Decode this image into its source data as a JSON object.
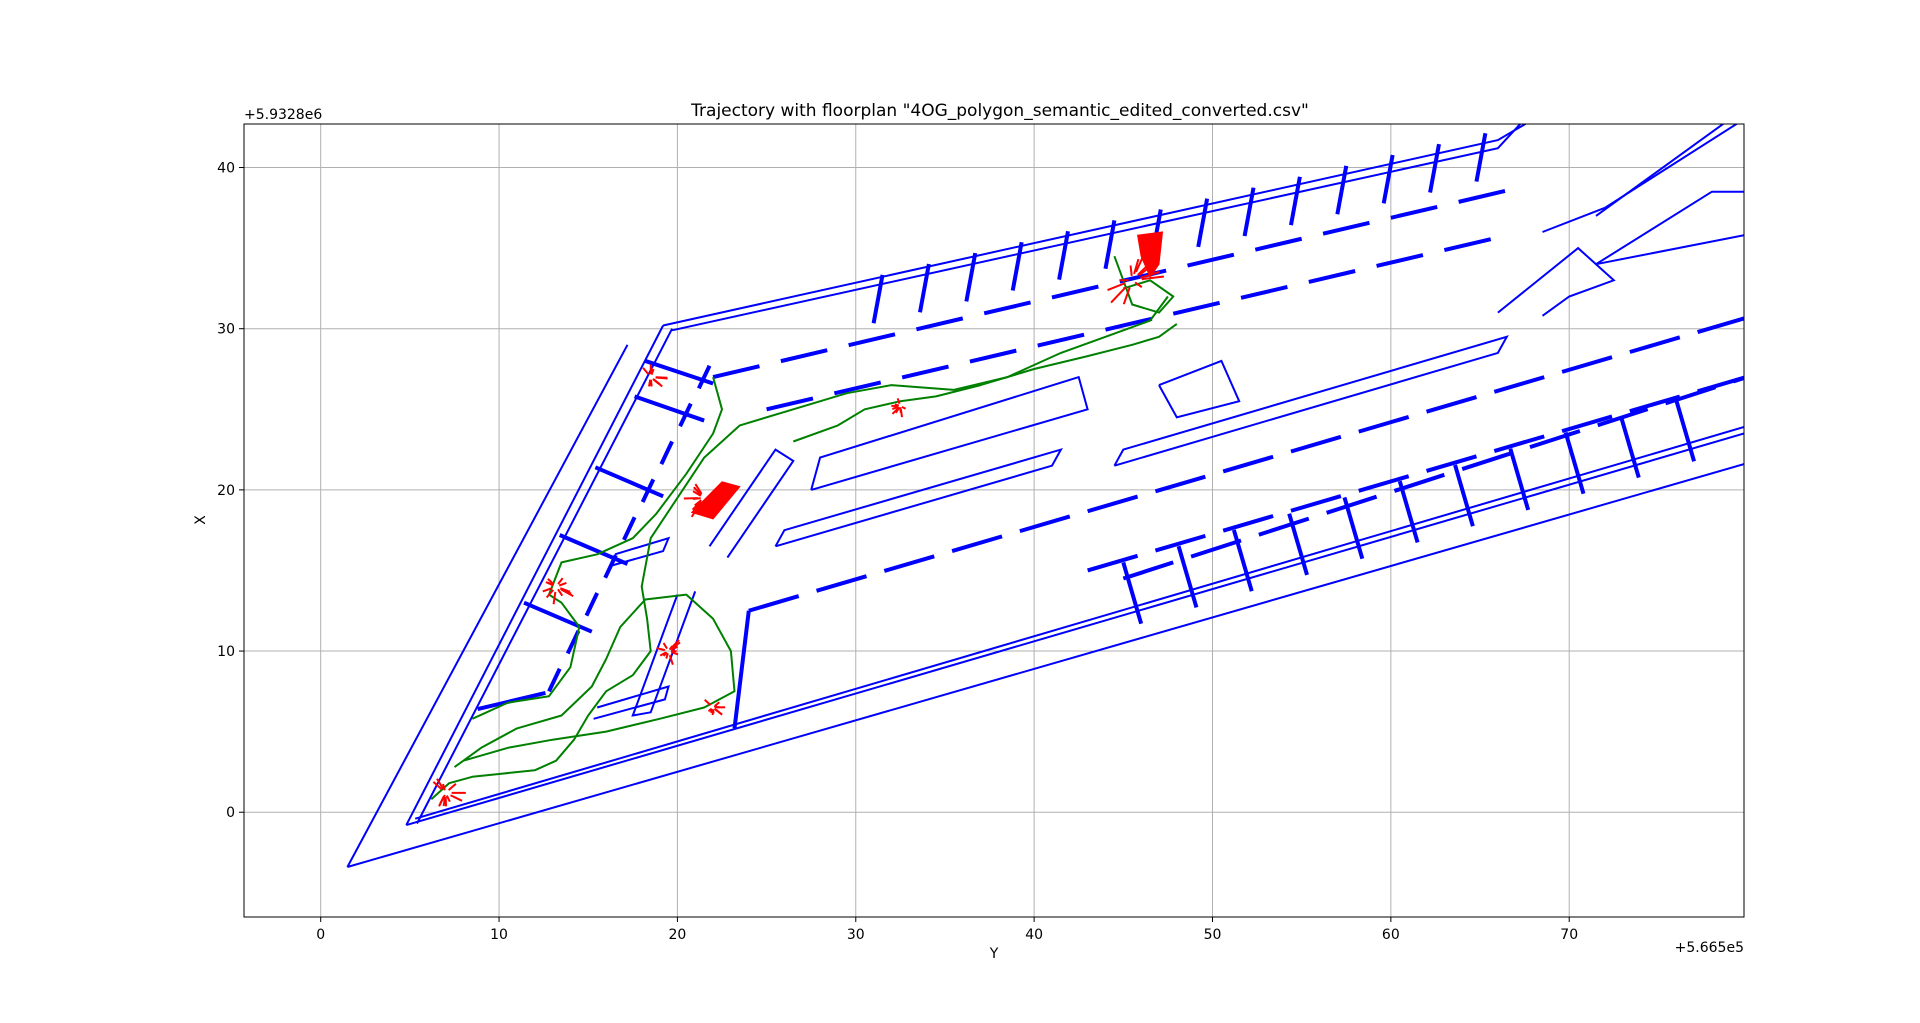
{
  "chart_data": {
    "type": "line",
    "title": "Trajectory with floorplan \"4OG_polygon_semantic_edited_converted.csv\"",
    "xlabel": "Y",
    "ylabel": "X",
    "x_offset_label": "+5.665e5",
    "y_offset_label": "+5.9328e6",
    "xlim": [
      -4.3,
      79.8
    ],
    "ylim": [
      -6.5,
      42.7
    ],
    "xticks": [
      0,
      10,
      20,
      30,
      40,
      50,
      60,
      70
    ],
    "yticks": [
      0,
      10,
      20,
      30,
      40
    ],
    "grid": true,
    "colors": {
      "floorplan": "#0000ff",
      "trajectory": "#008000",
      "measurements": "#ff0000",
      "grid": "#b0b0b0"
    },
    "floorplan": {
      "outer": [
        [
          1.5,
          -3.4
        ],
        [
          79.8,
          21.6
        ]
      ],
      "outer_left": [
        [
          1.5,
          -3.4
        ],
        [
          17.2,
          29.0
        ]
      ],
      "building": [
        [
          4.8,
          -0.8
        ],
        [
          79.8,
          23.5
        ],
        [
          79.8,
          29.7
        ],
        [
          19.2,
          30.2
        ],
        [
          4.8,
          -0.8
        ]
      ]
    },
    "series": [
      {
        "kind": "trajectory",
        "points": [
          [
            6.2,
            0.8
          ],
          [
            7.2,
            1.8
          ],
          [
            8.5,
            2.2
          ],
          [
            10.2,
            2.4
          ],
          [
            12.0,
            2.6
          ],
          [
            13.2,
            3.2
          ],
          [
            14.2,
            4.5
          ],
          [
            15.0,
            6.0
          ],
          [
            16.0,
            7.5
          ],
          [
            17.5,
            8.5
          ],
          [
            18.5,
            10.0
          ],
          [
            18.3,
            12.0
          ],
          [
            18.0,
            14.0
          ],
          [
            18.5,
            17.0
          ],
          [
            20.0,
            19.5
          ],
          [
            21.5,
            22.0
          ],
          [
            23.5,
            24.0
          ],
          [
            26.5,
            25.0
          ],
          [
            29.5,
            26.0
          ],
          [
            32.0,
            26.5
          ],
          [
            35.5,
            26.2
          ],
          [
            38.5,
            27.0
          ],
          [
            41.5,
            28.5
          ],
          [
            44.0,
            29.5
          ],
          [
            46.5,
            30.5
          ],
          [
            47.5,
            32.0
          ]
        ]
      },
      {
        "kind": "trajectory",
        "points": [
          [
            7.5,
            2.8
          ],
          [
            9.0,
            4.0
          ],
          [
            11.0,
            5.2
          ],
          [
            13.5,
            6.0
          ],
          [
            15.2,
            7.8
          ],
          [
            16.0,
            9.5
          ],
          [
            16.8,
            11.5
          ],
          [
            18.2,
            13.2
          ],
          [
            20.5,
            13.5
          ],
          [
            22.0,
            12.0
          ],
          [
            23.0,
            10.0
          ],
          [
            23.2,
            7.5
          ],
          [
            21.5,
            6.5
          ],
          [
            19.0,
            5.8
          ],
          [
            16.0,
            5.0
          ],
          [
            13.0,
            4.5
          ],
          [
            10.5,
            4.0
          ],
          [
            8.0,
            3.2
          ]
        ]
      },
      {
        "kind": "trajectory",
        "points": [
          [
            8.5,
            5.8
          ],
          [
            10.5,
            6.8
          ],
          [
            12.8,
            7.2
          ],
          [
            14.0,
            9.0
          ],
          [
            14.5,
            11.5
          ],
          [
            13.5,
            13.0
          ],
          [
            12.8,
            13.5
          ],
          [
            13.5,
            15.5
          ],
          [
            15.5,
            16.0
          ],
          [
            17.5,
            17.0
          ],
          [
            18.8,
            18.5
          ],
          [
            20.5,
            21.0
          ],
          [
            22.0,
            23.5
          ],
          [
            22.5,
            25.0
          ],
          [
            22.0,
            27.0
          ]
        ]
      },
      {
        "kind": "trajectory",
        "points": [
          [
            26.5,
            23.0
          ],
          [
            29.0,
            24.0
          ],
          [
            30.5,
            25.0
          ],
          [
            32.5,
            25.5
          ],
          [
            34.5,
            25.8
          ],
          [
            37.0,
            26.5
          ],
          [
            40.0,
            27.5
          ],
          [
            43.0,
            28.3
          ],
          [
            45.5,
            29.0
          ],
          [
            47.0,
            29.5
          ],
          [
            48.0,
            30.3
          ]
        ]
      },
      {
        "kind": "trajectory",
        "points": [
          [
            44.5,
            34.5
          ],
          [
            45.0,
            33.0
          ],
          [
            45.5,
            31.5
          ],
          [
            47.0,
            31.0
          ],
          [
            47.8,
            32.0
          ],
          [
            46.5,
            33.0
          ],
          [
            45.0,
            32.5
          ]
        ]
      },
      {
        "kind": "measurements",
        "clusters": [
          {
            "center": [
              7.0,
              1.2
            ],
            "spread": 1.0
          },
          {
            "center": [
              13.2,
              14.0
            ],
            "spread": 1.0
          },
          {
            "center": [
              21.5,
              19.5
            ],
            "spread": 1.2
          },
          {
            "center": [
              19.5,
              10.0
            ],
            "spread": 0.8
          },
          {
            "center": [
              22.0,
              6.5
            ],
            "spread": 0.6
          },
          {
            "center": [
              45.5,
              33.0
            ],
            "spread": 1.6
          },
          {
            "center": [
              18.5,
              27.0
            ],
            "spread": 0.8
          },
          {
            "center": [
              32.5,
              25.2
            ],
            "spread": 0.6
          }
        ]
      }
    ]
  }
}
